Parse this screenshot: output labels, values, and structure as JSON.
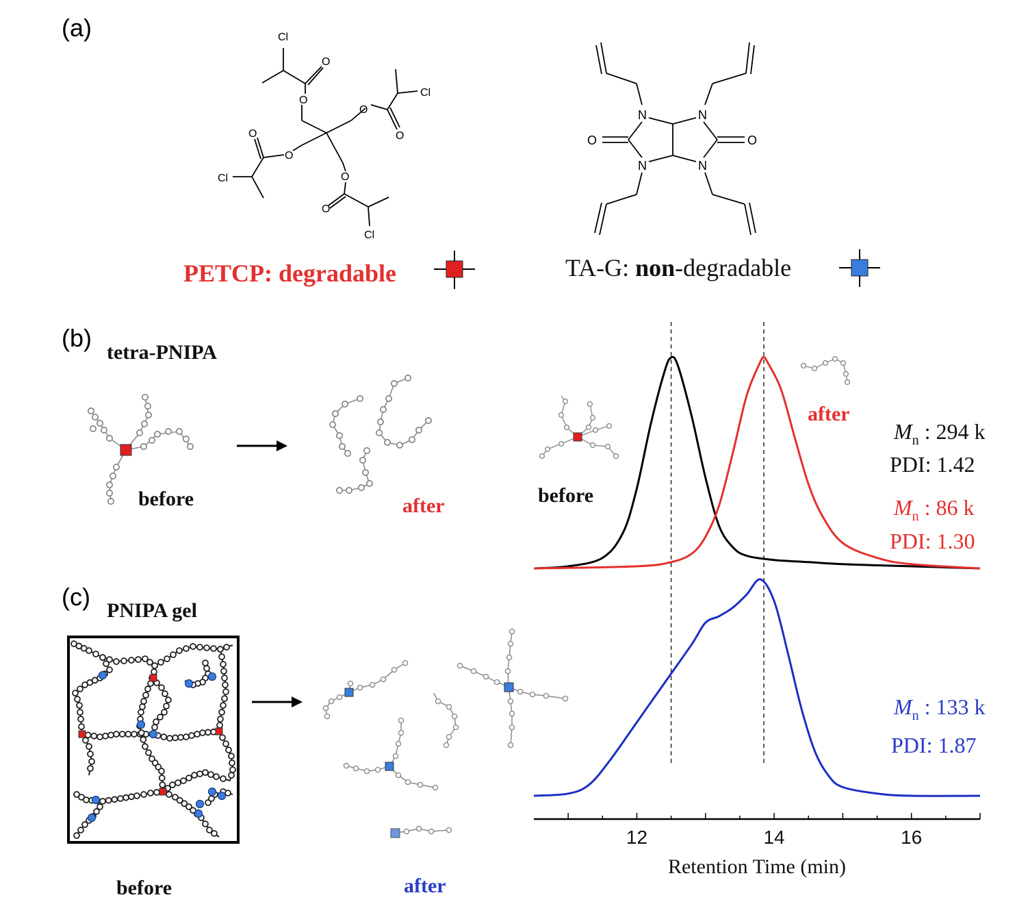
{
  "panel_labels": {
    "a": "(a)",
    "b": "(b)",
    "c": "(c)"
  },
  "panel_a": {
    "petcp": {
      "name": "PETCP",
      "suffix": ": degradable",
      "atoms": [
        "Cl",
        "O",
        "O",
        "O",
        "O",
        "O",
        "O",
        "O",
        "O",
        "Cl",
        "Cl",
        "Cl"
      ]
    },
    "tag": {
      "name": "TA-G",
      "colon": ": ",
      "bold_word": "non",
      "suffix": "-degradable",
      "atoms": [
        "N",
        "N",
        "N",
        "N",
        "O",
        "O"
      ]
    }
  },
  "panel_b": {
    "title": "tetra-PNIPA",
    "before_label": "before",
    "after_label": "after",
    "gpc_before_label": "before",
    "gpc_after_label": "after"
  },
  "panel_c": {
    "title": "PNIPA gel",
    "before_label": "before",
    "after_label": "after"
  },
  "annotations": {
    "black": {
      "mn_symbol": "M",
      "mn_sub": "n",
      "mn_value": " : 294 k",
      "pdi": "PDI: 1.42"
    },
    "red": {
      "mn_symbol": "M",
      "mn_sub": "n",
      "mn_value": " : 86 k",
      "pdi": "PDI: 1.30"
    },
    "blue": {
      "mn_symbol": "M",
      "mn_sub": "n",
      "mn_value": " : 133 k",
      "pdi": "PDI: 1.87"
    }
  },
  "colors": {
    "black_trace": "#000000",
    "red": "#e2312f",
    "red_text": "#e3302f",
    "blue": "#1b2fc4",
    "blue_text": "#2b3bc8",
    "node_red": "#e02020",
    "node_blue": "#3b7ddd",
    "chain_gray": "#8a8a8a"
  },
  "chart_data": {
    "type": "line",
    "xlabel": "Retention Time (min)",
    "ylabel": "",
    "xlim": [
      10.5,
      17
    ],
    "xticks": [
      12,
      14,
      16
    ],
    "xtick_labels": [
      "12",
      "14",
      "16"
    ],
    "reference_lines_x": [
      12.5,
      13.85
    ],
    "grid": false,
    "series": [
      {
        "name": "tetra-PNIPA before (black)",
        "panel": "upper",
        "color": "black",
        "peak_x": 12.5,
        "x": [
          10.5,
          11.0,
          11.5,
          11.8,
          12.0,
          12.2,
          12.4,
          12.5,
          12.6,
          12.8,
          13.0,
          13.2,
          13.4,
          13.6,
          14.0,
          14.5,
          15.0,
          16.0,
          17.0
        ],
        "y": [
          0.0,
          0.01,
          0.05,
          0.17,
          0.38,
          0.68,
          0.93,
          1.0,
          0.96,
          0.72,
          0.43,
          0.2,
          0.1,
          0.06,
          0.04,
          0.03,
          0.02,
          0.01,
          0.0
        ]
      },
      {
        "name": "tetra-PNIPA after (red)",
        "panel": "upper",
        "color": "red",
        "peak_x": 13.85,
        "x": [
          10.5,
          12.0,
          12.5,
          12.8,
          13.0,
          13.2,
          13.4,
          13.6,
          13.8,
          13.85,
          13.9,
          14.1,
          14.3,
          14.5,
          14.7,
          15.0,
          15.5,
          16.0,
          17.0
        ],
        "y": [
          0.0,
          0.01,
          0.03,
          0.07,
          0.15,
          0.3,
          0.55,
          0.82,
          0.98,
          1.0,
          0.98,
          0.85,
          0.62,
          0.4,
          0.25,
          0.12,
          0.05,
          0.02,
          0.0
        ]
      },
      {
        "name": "PNIPA gel after (blue)",
        "panel": "lower",
        "color": "blue",
        "peak_x": 13.8,
        "x": [
          10.5,
          11.0,
          11.3,
          11.6,
          12.0,
          12.4,
          12.8,
          13.0,
          13.2,
          13.4,
          13.6,
          13.8,
          14.0,
          14.2,
          14.4,
          14.6,
          14.8,
          15.0,
          15.5,
          16.0,
          17.0
        ],
        "y": [
          0.0,
          0.01,
          0.05,
          0.16,
          0.34,
          0.52,
          0.7,
          0.8,
          0.83,
          0.87,
          0.93,
          1.0,
          0.9,
          0.66,
          0.4,
          0.2,
          0.09,
          0.04,
          0.01,
          0.0,
          0.0
        ]
      }
    ]
  }
}
